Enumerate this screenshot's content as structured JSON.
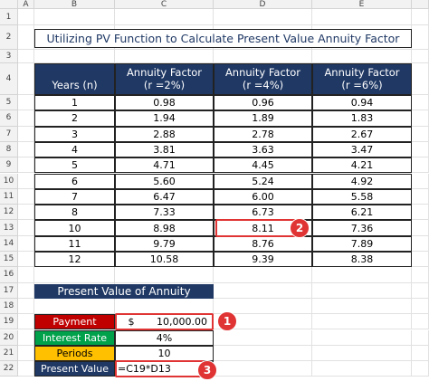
{
  "column_headers": [
    "A",
    "B",
    "C",
    "D",
    "E"
  ],
  "row_numbers": [
    1,
    2,
    3,
    4,
    5,
    6,
    7,
    8,
    9,
    10,
    11,
    12,
    13,
    14,
    15,
    16,
    17,
    18,
    19,
    20,
    21,
    22
  ],
  "title": "Utilizing PV Function to Calculate Present Value Annuity Factor",
  "table": {
    "headers": [
      [
        "Years (n)"
      ],
      [
        "Annuity Factor",
        "(r =2%)"
      ],
      [
        "Annuity Factor",
        "(r =4%)"
      ],
      [
        "Annuity Factor",
        "(r =6%)"
      ]
    ],
    "rows": [
      [
        "1",
        "0.98",
        "0.96",
        "0.94"
      ],
      [
        "2",
        "1.94",
        "1.89",
        "1.83"
      ],
      [
        "3",
        "2.88",
        "2.78",
        "2.67"
      ],
      [
        "4",
        "3.81",
        "3.63",
        "3.47"
      ],
      [
        "5",
        "4.71",
        "4.45",
        "4.21"
      ],
      [
        "6",
        "5.60",
        "5.24",
        "4.92"
      ],
      [
        "7",
        "6.47",
        "6.00",
        "5.58"
      ],
      [
        "8",
        "7.33",
        "6.73",
        "6.21"
      ],
      [
        "10",
        "8.98",
        "8.11",
        "7.36"
      ],
      [
        "11",
        "9.79",
        "8.76",
        "7.89"
      ],
      [
        "12",
        "10.58",
        "9.39",
        "8.38"
      ]
    ]
  },
  "pv_section": {
    "title": "Present Value of Annuity",
    "rows": [
      {
        "label": "Payment",
        "currency": "$",
        "value": "10,000.00"
      },
      {
        "label": "Interest Rate",
        "value": "4%"
      },
      {
        "label": "Periods",
        "value": "10"
      },
      {
        "label": "Present Value",
        "value": "=C19*D13"
      }
    ]
  },
  "badges": [
    "1",
    "2",
    "3"
  ]
}
